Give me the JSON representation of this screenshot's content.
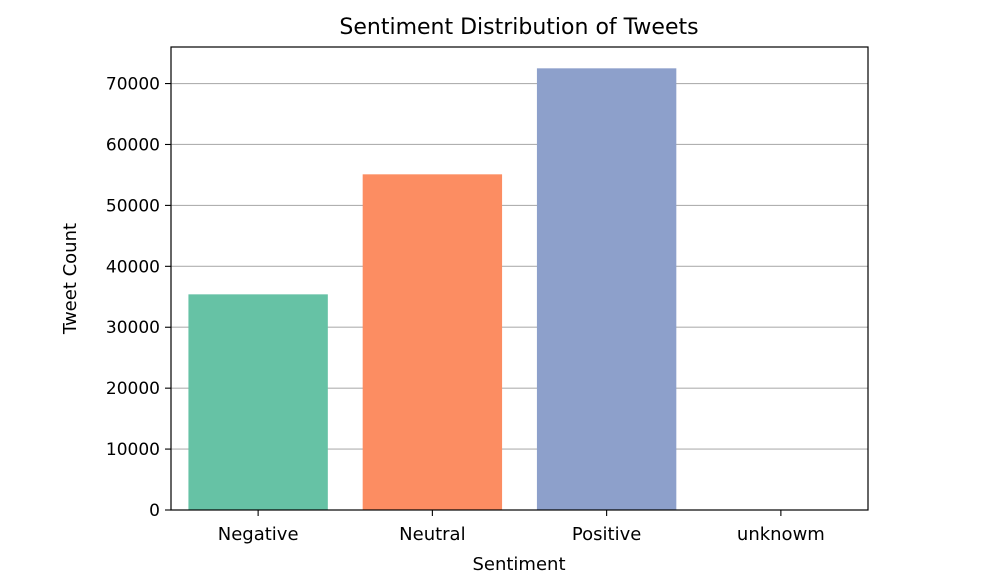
{
  "chart_data": {
    "type": "bar",
    "title": "Sentiment Distribution of Tweets",
    "xlabel": "Sentiment",
    "ylabel": "Tweet Count",
    "categories": [
      "Negative",
      "Neutral",
      "Positive",
      "unknowm"
    ],
    "values": [
      35400,
      55100,
      72500,
      0
    ],
    "colors": [
      "#66c2a5",
      "#fc8d62",
      "#8da0cb",
      "#e78ac3"
    ],
    "ylim": [
      0,
      76000
    ],
    "yticks": [
      0,
      10000,
      20000,
      30000,
      40000,
      50000,
      60000,
      70000
    ],
    "ytick_labels": [
      "0",
      "10000",
      "20000",
      "30000",
      "40000",
      "50000",
      "60000",
      "70000"
    ],
    "grid": "y",
    "legend": "none"
  }
}
